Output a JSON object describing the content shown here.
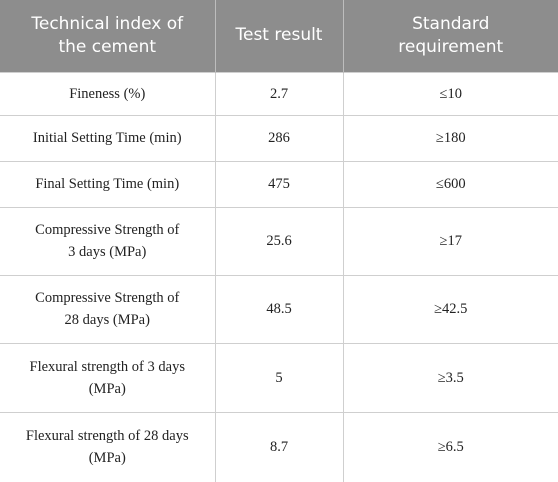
{
  "table": {
    "header": [
      [
        "Technical index of",
        "the cement"
      ],
      "Test result",
      [
        "Standard",
        "requirement"
      ]
    ],
    "rows": [
      [
        "Fineness (%)",
        "2.7",
        "≤10"
      ],
      [
        "Initial Setting Time (min)",
        "286",
        "≥180"
      ],
      [
        "Final Setting Time (min)",
        "475",
        "≤600"
      ],
      [
        [
          "Compressive Strength of",
          "3 days (MPa)"
        ],
        "25.6",
        "≥17"
      ],
      [
        [
          "Compressive Strength of",
          "28 days (MPa)"
        ],
        "48.5",
        "≥42.5"
      ],
      [
        [
          "Flexural strength of 3 days",
          "(MPa)"
        ],
        "5",
        "≥3.5"
      ],
      [
        [
          "Flexural strength of 28 days",
          "(MPa)"
        ],
        "8.7",
        "≥6.5"
      ]
    ]
  }
}
